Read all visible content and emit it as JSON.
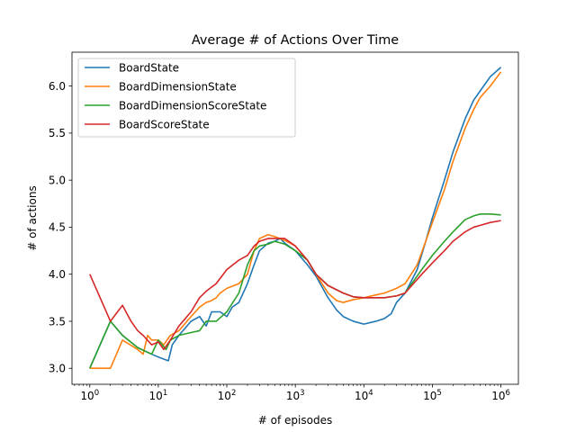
{
  "chart_data": {
    "type": "line",
    "title": "Average # of Actions Over Time",
    "xlabel": "# of episodes",
    "ylabel": "# of actions",
    "xscale": "log",
    "xlim": [
      0.55,
      1800000
    ],
    "ylim": [
      2.83,
      6.36
    ],
    "x_ticks": [
      {
        "value": 1,
        "base": "10",
        "exp": "0"
      },
      {
        "value": 10,
        "base": "10",
        "exp": "1"
      },
      {
        "value": 100,
        "base": "10",
        "exp": "2"
      },
      {
        "value": 1000,
        "base": "10",
        "exp": "3"
      },
      {
        "value": 10000,
        "base": "10",
        "exp": "4"
      },
      {
        "value": 100000,
        "base": "10",
        "exp": "5"
      },
      {
        "value": 1000000,
        "base": "10",
        "exp": "6"
      }
    ],
    "y_ticks": [
      "3.0",
      "3.5",
      "4.0",
      "4.5",
      "5.0",
      "5.5",
      "6.0"
    ],
    "grid": false,
    "legend_position": "top-left",
    "series": [
      {
        "name": "BoardState",
        "color": "#1f77b4",
        "points": [
          [
            1,
            3.0
          ],
          [
            2,
            3.5
          ],
          [
            3,
            3.35
          ],
          [
            5,
            3.22
          ],
          [
            8,
            3.15
          ],
          [
            10,
            3.12
          ],
          [
            14,
            3.08
          ],
          [
            16,
            3.25
          ],
          [
            20,
            3.35
          ],
          [
            30,
            3.5
          ],
          [
            40,
            3.55
          ],
          [
            50,
            3.45
          ],
          [
            60,
            3.6
          ],
          [
            80,
            3.6
          ],
          [
            100,
            3.55
          ],
          [
            120,
            3.65
          ],
          [
            150,
            3.7
          ],
          [
            200,
            3.9
          ],
          [
            250,
            4.1
          ],
          [
            300,
            4.25
          ],
          [
            400,
            4.33
          ],
          [
            500,
            4.35
          ],
          [
            600,
            4.38
          ],
          [
            700,
            4.33
          ],
          [
            1000,
            4.25
          ],
          [
            1500,
            4.1
          ],
          [
            2000,
            3.98
          ],
          [
            3000,
            3.75
          ],
          [
            4000,
            3.62
          ],
          [
            5000,
            3.55
          ],
          [
            7000,
            3.5
          ],
          [
            10000,
            3.47
          ],
          [
            15000,
            3.5
          ],
          [
            20000,
            3.53
          ],
          [
            25000,
            3.58
          ],
          [
            30000,
            3.7
          ],
          [
            40000,
            3.8
          ],
          [
            60000,
            4.05
          ],
          [
            80000,
            4.35
          ],
          [
            100000,
            4.6
          ],
          [
            150000,
            5.0
          ],
          [
            200000,
            5.3
          ],
          [
            300000,
            5.65
          ],
          [
            400000,
            5.85
          ],
          [
            500000,
            5.95
          ],
          [
            700000,
            6.1
          ],
          [
            1000000,
            6.2
          ]
        ]
      },
      {
        "name": "BoardDimensionState",
        "color": "#ff7f0e",
        "points": [
          [
            1,
            3.0
          ],
          [
            2,
            3.0
          ],
          [
            3,
            3.3
          ],
          [
            5,
            3.2
          ],
          [
            6,
            3.15
          ],
          [
            7,
            3.35
          ],
          [
            8,
            3.3
          ],
          [
            10,
            3.3
          ],
          [
            12,
            3.25
          ],
          [
            15,
            3.35
          ],
          [
            20,
            3.4
          ],
          [
            30,
            3.55
          ],
          [
            40,
            3.65
          ],
          [
            50,
            3.7
          ],
          [
            60,
            3.72
          ],
          [
            70,
            3.75
          ],
          [
            80,
            3.8
          ],
          [
            100,
            3.85
          ],
          [
            150,
            3.9
          ],
          [
            200,
            4.0
          ],
          [
            250,
            4.25
          ],
          [
            300,
            4.38
          ],
          [
            400,
            4.42
          ],
          [
            500,
            4.4
          ],
          [
            700,
            4.36
          ],
          [
            1000,
            4.3
          ],
          [
            1500,
            4.15
          ],
          [
            2000,
            4.0
          ],
          [
            3000,
            3.8
          ],
          [
            4000,
            3.72
          ],
          [
            5000,
            3.7
          ],
          [
            7000,
            3.73
          ],
          [
            10000,
            3.75
          ],
          [
            15000,
            3.78
          ],
          [
            20000,
            3.8
          ],
          [
            30000,
            3.85
          ],
          [
            40000,
            3.9
          ],
          [
            60000,
            4.1
          ],
          [
            80000,
            4.35
          ],
          [
            100000,
            4.55
          ],
          [
            150000,
            4.9
          ],
          [
            200000,
            5.2
          ],
          [
            300000,
            5.55
          ],
          [
            400000,
            5.75
          ],
          [
            500000,
            5.88
          ],
          [
            700000,
            6.0
          ],
          [
            1000000,
            6.15
          ]
        ]
      },
      {
        "name": "BoardDimensionScoreState",
        "color": "#2ca02c",
        "points": [
          [
            1,
            3.0
          ],
          [
            2,
            3.5
          ],
          [
            3,
            3.35
          ],
          [
            5,
            3.22
          ],
          [
            8,
            3.15
          ],
          [
            10,
            3.3
          ],
          [
            13,
            3.2
          ],
          [
            15,
            3.3
          ],
          [
            20,
            3.35
          ],
          [
            30,
            3.38
          ],
          [
            40,
            3.4
          ],
          [
            50,
            3.5
          ],
          [
            70,
            3.5
          ],
          [
            100,
            3.6
          ],
          [
            150,
            3.8
          ],
          [
            200,
            4.1
          ],
          [
            250,
            4.25
          ],
          [
            300,
            4.3
          ],
          [
            400,
            4.32
          ],
          [
            500,
            4.35
          ],
          [
            700,
            4.32
          ],
          [
            1000,
            4.25
          ],
          [
            1500,
            4.15
          ],
          [
            2000,
            4.0
          ],
          [
            3000,
            3.88
          ],
          [
            5000,
            3.8
          ],
          [
            7000,
            3.76
          ],
          [
            10000,
            3.75
          ],
          [
            20000,
            3.75
          ],
          [
            30000,
            3.77
          ],
          [
            40000,
            3.8
          ],
          [
            50000,
            3.9
          ],
          [
            70000,
            4.05
          ],
          [
            100000,
            4.2
          ],
          [
            150000,
            4.35
          ],
          [
            200000,
            4.45
          ],
          [
            300000,
            4.58
          ],
          [
            400000,
            4.62
          ],
          [
            500000,
            4.64
          ],
          [
            700000,
            4.64
          ],
          [
            1000000,
            4.63
          ]
        ]
      },
      {
        "name": "BoardScoreState",
        "color": "#d62728",
        "points": [
          [
            1,
            4.0
          ],
          [
            2,
            3.5
          ],
          [
            3,
            3.67
          ],
          [
            4,
            3.5
          ],
          [
            5,
            3.4
          ],
          [
            6,
            3.35
          ],
          [
            8,
            3.25
          ],
          [
            10,
            3.28
          ],
          [
            12,
            3.2
          ],
          [
            15,
            3.3
          ],
          [
            20,
            3.45
          ],
          [
            30,
            3.6
          ],
          [
            40,
            3.75
          ],
          [
            50,
            3.82
          ],
          [
            70,
            3.9
          ],
          [
            100,
            4.05
          ],
          [
            150,
            4.15
          ],
          [
            200,
            4.2
          ],
          [
            250,
            4.3
          ],
          [
            300,
            4.35
          ],
          [
            400,
            4.38
          ],
          [
            500,
            4.38
          ],
          [
            700,
            4.38
          ],
          [
            1000,
            4.3
          ],
          [
            1500,
            4.15
          ],
          [
            2000,
            4.0
          ],
          [
            3000,
            3.88
          ],
          [
            5000,
            3.8
          ],
          [
            7000,
            3.76
          ],
          [
            10000,
            3.75
          ],
          [
            20000,
            3.75
          ],
          [
            30000,
            3.77
          ],
          [
            40000,
            3.8
          ],
          [
            50000,
            3.88
          ],
          [
            70000,
            4.0
          ],
          [
            100000,
            4.12
          ],
          [
            150000,
            4.25
          ],
          [
            200000,
            4.35
          ],
          [
            300000,
            4.45
          ],
          [
            400000,
            4.5
          ],
          [
            500000,
            4.52
          ],
          [
            700000,
            4.55
          ],
          [
            1000000,
            4.57
          ]
        ]
      }
    ]
  }
}
